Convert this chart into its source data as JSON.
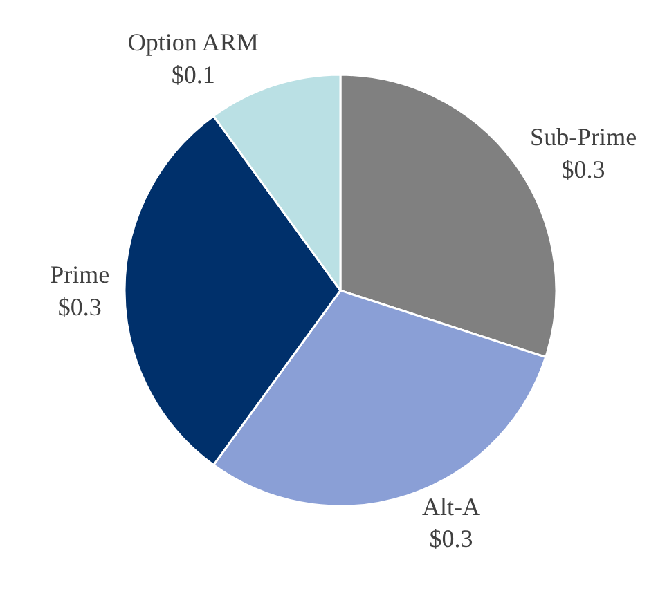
{
  "chart_data": {
    "type": "pie",
    "categories": [
      "Sub-Prime",
      "Alt-A",
      "Prime",
      "Option ARM"
    ],
    "values": [
      0.3,
      0.3,
      0.3,
      0.1
    ],
    "value_labels": [
      "$0.3",
      "$0.3",
      "$0.3",
      "$0.1"
    ],
    "colors": [
      "#808080",
      "#8a9fd6",
      "#00306b",
      "#bae0e4"
    ]
  }
}
